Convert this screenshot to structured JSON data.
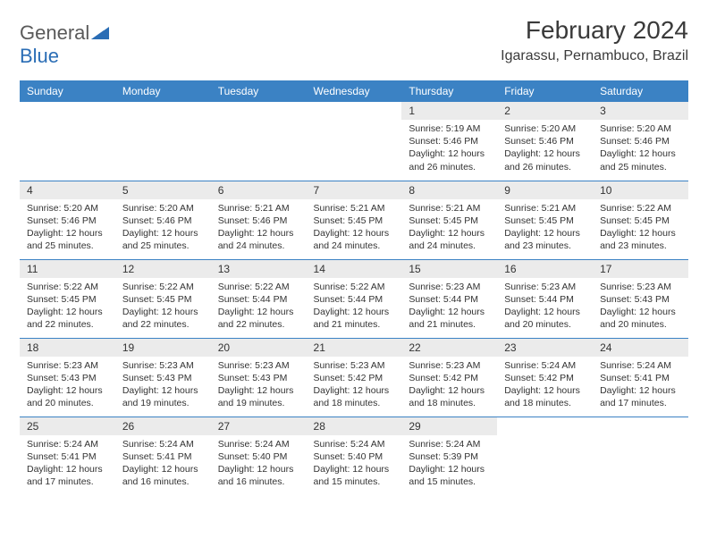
{
  "brand": {
    "name1": "General",
    "name2": "Blue"
  },
  "title": "February 2024",
  "location": "Igarassu, Pernambuco, Brazil",
  "weekdays": [
    "Sunday",
    "Monday",
    "Tuesday",
    "Wednesday",
    "Thursday",
    "Friday",
    "Saturday"
  ],
  "layout": {
    "startWeekdayIndex": 4,
    "daysInMonth": 29,
    "weeks": 5
  },
  "colors": {
    "headerBg": "#3b82c4",
    "headerText": "#ffffff",
    "dayStripBg": "#ebebeb",
    "borderColor": "#3b82c4",
    "bodyText": "#333333",
    "logoGray": "#5a5a5a",
    "logoBlue": "#2a6db5",
    "pageBg": "#ffffff"
  },
  "typography": {
    "titleFontSize": 28,
    "locationFontSize": 16,
    "weekdayFontSize": 12,
    "dayNumFontSize": 12,
    "cellFontSize": 10.5
  },
  "days": {
    "1": {
      "sunrise": "5:19 AM",
      "sunset": "5:46 PM",
      "daylight": "12 hours and 26 minutes."
    },
    "2": {
      "sunrise": "5:20 AM",
      "sunset": "5:46 PM",
      "daylight": "12 hours and 26 minutes."
    },
    "3": {
      "sunrise": "5:20 AM",
      "sunset": "5:46 PM",
      "daylight": "12 hours and 25 minutes."
    },
    "4": {
      "sunrise": "5:20 AM",
      "sunset": "5:46 PM",
      "daylight": "12 hours and 25 minutes."
    },
    "5": {
      "sunrise": "5:20 AM",
      "sunset": "5:46 PM",
      "daylight": "12 hours and 25 minutes."
    },
    "6": {
      "sunrise": "5:21 AM",
      "sunset": "5:46 PM",
      "daylight": "12 hours and 24 minutes."
    },
    "7": {
      "sunrise": "5:21 AM",
      "sunset": "5:45 PM",
      "daylight": "12 hours and 24 minutes."
    },
    "8": {
      "sunrise": "5:21 AM",
      "sunset": "5:45 PM",
      "daylight": "12 hours and 24 minutes."
    },
    "9": {
      "sunrise": "5:21 AM",
      "sunset": "5:45 PM",
      "daylight": "12 hours and 23 minutes."
    },
    "10": {
      "sunrise": "5:22 AM",
      "sunset": "5:45 PM",
      "daylight": "12 hours and 23 minutes."
    },
    "11": {
      "sunrise": "5:22 AM",
      "sunset": "5:45 PM",
      "daylight": "12 hours and 22 minutes."
    },
    "12": {
      "sunrise": "5:22 AM",
      "sunset": "5:45 PM",
      "daylight": "12 hours and 22 minutes."
    },
    "13": {
      "sunrise": "5:22 AM",
      "sunset": "5:44 PM",
      "daylight": "12 hours and 22 minutes."
    },
    "14": {
      "sunrise": "5:22 AM",
      "sunset": "5:44 PM",
      "daylight": "12 hours and 21 minutes."
    },
    "15": {
      "sunrise": "5:23 AM",
      "sunset": "5:44 PM",
      "daylight": "12 hours and 21 minutes."
    },
    "16": {
      "sunrise": "5:23 AM",
      "sunset": "5:44 PM",
      "daylight": "12 hours and 20 minutes."
    },
    "17": {
      "sunrise": "5:23 AM",
      "sunset": "5:43 PM",
      "daylight": "12 hours and 20 minutes."
    },
    "18": {
      "sunrise": "5:23 AM",
      "sunset": "5:43 PM",
      "daylight": "12 hours and 20 minutes."
    },
    "19": {
      "sunrise": "5:23 AM",
      "sunset": "5:43 PM",
      "daylight": "12 hours and 19 minutes."
    },
    "20": {
      "sunrise": "5:23 AM",
      "sunset": "5:43 PM",
      "daylight": "12 hours and 19 minutes."
    },
    "21": {
      "sunrise": "5:23 AM",
      "sunset": "5:42 PM",
      "daylight": "12 hours and 18 minutes."
    },
    "22": {
      "sunrise": "5:23 AM",
      "sunset": "5:42 PM",
      "daylight": "12 hours and 18 minutes."
    },
    "23": {
      "sunrise": "5:24 AM",
      "sunset": "5:42 PM",
      "daylight": "12 hours and 18 minutes."
    },
    "24": {
      "sunrise": "5:24 AM",
      "sunset": "5:41 PM",
      "daylight": "12 hours and 17 minutes."
    },
    "25": {
      "sunrise": "5:24 AM",
      "sunset": "5:41 PM",
      "daylight": "12 hours and 17 minutes."
    },
    "26": {
      "sunrise": "5:24 AM",
      "sunset": "5:41 PM",
      "daylight": "12 hours and 16 minutes."
    },
    "27": {
      "sunrise": "5:24 AM",
      "sunset": "5:40 PM",
      "daylight": "12 hours and 16 minutes."
    },
    "28": {
      "sunrise": "5:24 AM",
      "sunset": "5:40 PM",
      "daylight": "12 hours and 15 minutes."
    },
    "29": {
      "sunrise": "5:24 AM",
      "sunset": "5:39 PM",
      "daylight": "12 hours and 15 minutes."
    }
  },
  "labels": {
    "sunrise": "Sunrise:",
    "sunset": "Sunset:",
    "daylight": "Daylight:"
  }
}
